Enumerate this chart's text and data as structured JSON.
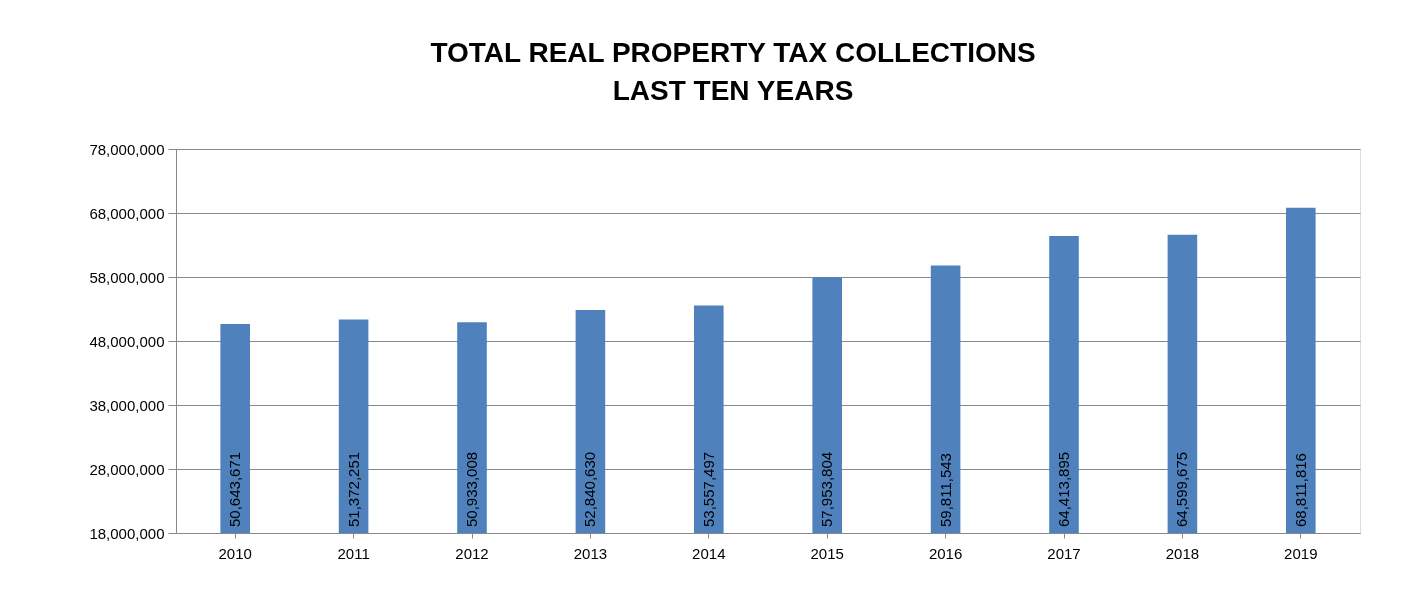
{
  "chart_data": {
    "type": "bar",
    "title": "TOTAL REAL PROPERTY TAX COLLECTIONS\nLAST TEN YEARS",
    "categories": [
      "2010",
      "2011",
      "2012",
      "2013",
      "2014",
      "2015",
      "2016",
      "2017",
      "2018",
      "2019"
    ],
    "values": [
      50643671,
      51372251,
      50933008,
      52840630,
      53557497,
      57953804,
      59811543,
      64413895,
      64599675,
      68811816
    ],
    "value_labels": [
      "50,643,671",
      "51,372,251",
      "50,933,008",
      "52,840,630",
      "53,557,497",
      "57,953,804",
      "59,811,543",
      "64,413,895",
      "64,599,675",
      "68,811,816"
    ],
    "color": "#4f81bd",
    "ylim": [
      18000000,
      78000000
    ],
    "yticks": [
      {
        "value": 18000000,
        "label": "18,000,000"
      },
      {
        "value": 28000000,
        "label": "28,000,000"
      },
      {
        "value": 38000000,
        "label": "38,000,000"
      },
      {
        "value": 48000000,
        "label": "48,000,000"
      },
      {
        "value": 58000000,
        "label": "58,000,000"
      },
      {
        "value": 68000000,
        "label": "68,000,000"
      },
      {
        "value": 78000000,
        "label": "78,000,000"
      }
    ],
    "grid": "y"
  }
}
